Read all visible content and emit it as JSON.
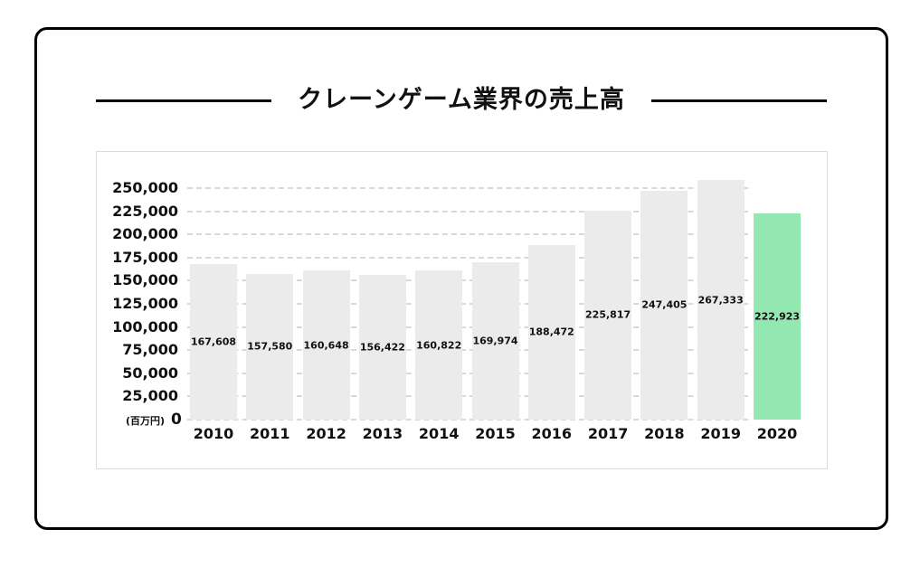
{
  "title": "クレーンゲーム業界の売上高",
  "colors": {
    "bar": "#ebebeb",
    "highlight": "#93e8b1",
    "grid": "#d8d8d8",
    "frame": "#000000"
  },
  "axis": {
    "unit_label": "(百万円)",
    "zero_label": "0",
    "y_ticks": [
      "250,000",
      "225,000",
      "200,000",
      "175,000",
      "150,000",
      "125,000",
      "100,000",
      "75,000",
      "50,000",
      "25,000"
    ]
  },
  "chart_data": {
    "type": "bar",
    "title": "クレーンゲーム業界の売上高",
    "xlabel": "",
    "ylabel": "(百万円)",
    "categories": [
      "2010",
      "2011",
      "2012",
      "2013",
      "2014",
      "2015",
      "2016",
      "2017",
      "2018",
      "2019",
      "2020"
    ],
    "values": [
      167608,
      157580,
      160648,
      156422,
      160822,
      169974,
      188472,
      225817,
      247405,
      267333,
      222923
    ],
    "value_labels": [
      "167,608",
      "157,580",
      "160,648",
      "156,422",
      "160,822",
      "169,974",
      "188,472",
      "225,817",
      "247,405",
      "267,333",
      "222,923"
    ],
    "highlight_index": 10,
    "ylim": [
      0,
      250000
    ],
    "y_tick_step": 25000,
    "grid": true,
    "legend": null
  }
}
